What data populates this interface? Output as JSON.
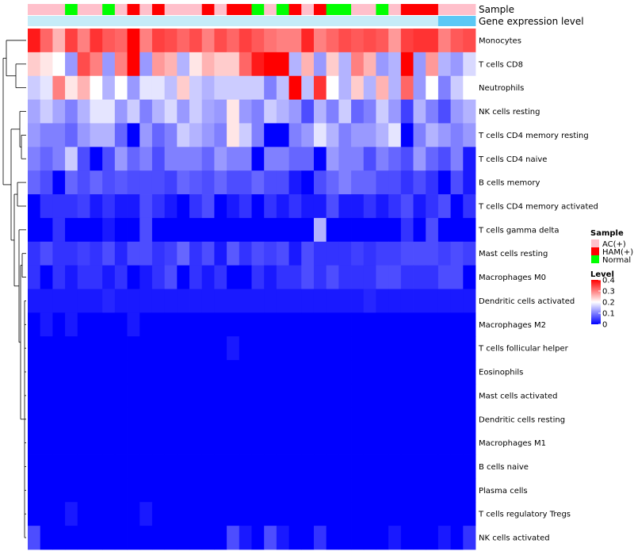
{
  "chart_data": {
    "type": "heatmap",
    "annotation_labels": {
      "sample": "Sample",
      "level": "Gene expression level"
    },
    "sample_colors": {
      "AC(+)": "#FFC0CB",
      "HAM(+)": "#FF0000",
      "Normal": "#00FF00"
    },
    "level_bar_colors": {
      "low": "#C6ECF8",
      "high": "#5BC8F5"
    },
    "samples": [
      "AC(+)",
      "AC(+)",
      "AC(+)",
      "Normal",
      "AC(+)",
      "AC(+)",
      "Normal",
      "AC(+)",
      "HAM(+)",
      "AC(+)",
      "HAM(+)",
      "AC(+)",
      "AC(+)",
      "AC(+)",
      "HAM(+)",
      "AC(+)",
      "HAM(+)",
      "HAM(+)",
      "Normal",
      "AC(+)",
      "Normal",
      "HAM(+)",
      "AC(+)",
      "HAM(+)",
      "Normal",
      "Normal",
      "AC(+)",
      "AC(+)",
      "Normal",
      "AC(+)",
      "HAM(+)",
      "HAM(+)",
      "HAM(+)",
      "AC(+)",
      "AC(+)",
      "AC(+)"
    ],
    "level_highlight_from": 33,
    "rows": [
      {
        "name": "Monocytes",
        "values": [
          0.38,
          0.32,
          0.26,
          0.35,
          0.3,
          0.36,
          0.33,
          0.32,
          0.4,
          0.3,
          0.35,
          0.34,
          0.32,
          0.34,
          0.3,
          0.34,
          0.32,
          0.35,
          0.33,
          0.31,
          0.3,
          0.3,
          0.37,
          0.3,
          0.32,
          0.34,
          0.33,
          0.34,
          0.33,
          0.28,
          0.35,
          0.36,
          0.36,
          0.3,
          0.33,
          0.34
        ]
      },
      {
        "name": "T cells CD8",
        "values": [
          0.24,
          0.22,
          0.2,
          0.12,
          0.34,
          0.3,
          0.12,
          0.3,
          0.4,
          0.12,
          0.28,
          0.26,
          0.14,
          0.22,
          0.26,
          0.24,
          0.24,
          0.32,
          0.38,
          0.4,
          0.4,
          0.14,
          0.26,
          0.12,
          0.24,
          0.14,
          0.3,
          0.26,
          0.12,
          0.14,
          0.4,
          0.12,
          0.28,
          0.14,
          0.12,
          0.17
        ]
      },
      {
        "name": "Neutrophils",
        "values": [
          0.16,
          0.18,
          0.3,
          0.22,
          0.26,
          0.2,
          0.14,
          0.2,
          0.12,
          0.18,
          0.18,
          0.15,
          0.24,
          0.16,
          0.14,
          0.16,
          0.16,
          0.16,
          0.16,
          0.1,
          0.15,
          0.4,
          0.15,
          0.36,
          0.2,
          0.14,
          0.24,
          0.14,
          0.26,
          0.14,
          0.32,
          0.12,
          0.2,
          0.1,
          0.16,
          0.2
        ]
      },
      {
        "name": "NK cells resting",
        "values": [
          0.13,
          0.16,
          0.13,
          0.1,
          0.14,
          0.18,
          0.18,
          0.12,
          0.16,
          0.1,
          0.14,
          0.17,
          0.12,
          0.16,
          0.13,
          0.12,
          0.22,
          0.12,
          0.1,
          0.16,
          0.14,
          0.12,
          0.06,
          0.14,
          0.1,
          0.16,
          0.08,
          0.1,
          0.16,
          0.12,
          0.05,
          0.14,
          0.1,
          0.06,
          0.12,
          0.14
        ]
      },
      {
        "name": "T cells CD4 memory resting",
        "values": [
          0.12,
          0.1,
          0.1,
          0.08,
          0.12,
          0.14,
          0.14,
          0.08,
          0.0,
          0.12,
          0.08,
          0.1,
          0.16,
          0.14,
          0.12,
          0.1,
          0.22,
          0.16,
          0.1,
          0.0,
          0.0,
          0.1,
          0.12,
          0.18,
          0.14,
          0.1,
          0.12,
          0.12,
          0.14,
          0.18,
          0.0,
          0.1,
          0.14,
          0.12,
          0.1,
          0.12
        ]
      },
      {
        "name": "T cells CD4 naive",
        "values": [
          0.1,
          0.08,
          0.1,
          0.16,
          0.06,
          0.0,
          0.06,
          0.12,
          0.08,
          0.1,
          0.06,
          0.1,
          0.1,
          0.1,
          0.08,
          0.12,
          0.1,
          0.1,
          0.0,
          0.1,
          0.1,
          0.08,
          0.08,
          0.0,
          0.12,
          0.1,
          0.1,
          0.06,
          0.1,
          0.08,
          0.06,
          0.12,
          0.08,
          0.06,
          0.1,
          0.02
        ]
      },
      {
        "name": "B cells memory",
        "values": [
          0.08,
          0.06,
          0.0,
          0.08,
          0.06,
          0.08,
          0.06,
          0.07,
          0.06,
          0.06,
          0.06,
          0.05,
          0.08,
          0.07,
          0.06,
          0.08,
          0.06,
          0.06,
          0.08,
          0.06,
          0.06,
          0.02,
          0.0,
          0.06,
          0.08,
          0.1,
          0.08,
          0.08,
          0.06,
          0.06,
          0.04,
          0.06,
          0.04,
          0.0,
          0.06,
          0.02
        ]
      },
      {
        "name": "T cells CD4 memory activated",
        "values": [
          0.0,
          0.04,
          0.04,
          0.04,
          0.05,
          0.02,
          0.04,
          0.02,
          0.02,
          0.06,
          0.04,
          0.02,
          0.0,
          0.04,
          0.06,
          0.0,
          0.02,
          0.04,
          0.0,
          0.04,
          0.02,
          0.04,
          0.02,
          0.02,
          0.06,
          0.02,
          0.02,
          0.04,
          0.02,
          0.04,
          0.06,
          0.02,
          0.04,
          0.06,
          0.0,
          0.04
        ]
      },
      {
        "name": "T cells gamma delta",
        "values": [
          0.0,
          0.0,
          0.04,
          0.0,
          0.0,
          0.0,
          0.02,
          0.0,
          0.0,
          0.06,
          0.0,
          0.0,
          0.0,
          0.0,
          0.0,
          0.0,
          0.0,
          0.0,
          0.0,
          0.0,
          0.0,
          0.0,
          0.0,
          0.14,
          0.0,
          0.0,
          0.0,
          0.0,
          0.0,
          0.0,
          0.04,
          0.0,
          0.06,
          0.0,
          0.0,
          0.0
        ]
      },
      {
        "name": "Mast cells resting",
        "values": [
          0.04,
          0.06,
          0.04,
          0.04,
          0.05,
          0.04,
          0.06,
          0.03,
          0.06,
          0.06,
          0.04,
          0.05,
          0.08,
          0.04,
          0.06,
          0.02,
          0.07,
          0.04,
          0.06,
          0.05,
          0.06,
          0.02,
          0.06,
          0.04,
          0.04,
          0.04,
          0.05,
          0.04,
          0.05,
          0.05,
          0.06,
          0.06,
          0.06,
          0.05,
          0.06,
          0.05
        ]
      },
      {
        "name": "Macrophages M0",
        "values": [
          0.04,
          0.0,
          0.04,
          0.02,
          0.04,
          0.04,
          0.02,
          0.04,
          0.0,
          0.02,
          0.04,
          0.06,
          0.0,
          0.04,
          0.02,
          0.04,
          0.0,
          0.0,
          0.04,
          0.02,
          0.04,
          0.04,
          0.06,
          0.04,
          0.06,
          0.04,
          0.04,
          0.04,
          0.06,
          0.06,
          0.04,
          0.04,
          0.04,
          0.06,
          0.06,
          0.0
        ]
      },
      {
        "name": "Dendritic cells activated",
        "values": [
          0.02,
          0.02,
          0.02,
          0.02,
          0.02,
          0.02,
          0.03,
          0.02,
          0.02,
          0.02,
          0.02,
          0.02,
          0.02,
          0.02,
          0.02,
          0.02,
          0.02,
          0.02,
          0.02,
          0.02,
          0.02,
          0.02,
          0.02,
          0.02,
          0.02,
          0.02,
          0.02,
          0.03,
          0.02,
          0.02,
          0.02,
          0.02,
          0.02,
          0.02,
          0.02,
          0.02
        ]
      },
      {
        "name": "Macrophages M2",
        "values": [
          0.0,
          0.02,
          0.0,
          0.02,
          0.0,
          0.0,
          0.0,
          0.0,
          0.02,
          0.0,
          0.0,
          0.0,
          0.0,
          0.0,
          0.0,
          0.0,
          0.0,
          0.0,
          0.0,
          0.0,
          0.0,
          0.0,
          0.0,
          0.0,
          0.0,
          0.0,
          0.0,
          0.0,
          0.0,
          0.0,
          0.0,
          0.0,
          0.0,
          0.0,
          0.0,
          0.0
        ]
      },
      {
        "name": "T cells follicular helper",
        "values": [
          0.0,
          0.0,
          0.0,
          0.0,
          0.0,
          0.0,
          0.0,
          0.0,
          0.0,
          0.0,
          0.0,
          0.0,
          0.0,
          0.0,
          0.0,
          0.0,
          0.02,
          0.0,
          0.0,
          0.0,
          0.0,
          0.0,
          0.0,
          0.0,
          0.0,
          0.0,
          0.0,
          0.0,
          0.0,
          0.0,
          0.0,
          0.0,
          0.0,
          0.0,
          0.0,
          0.0
        ]
      },
      {
        "name": "Eosinophils",
        "values": [
          0.0,
          0.0,
          0.0,
          0.0,
          0.0,
          0.0,
          0.0,
          0.0,
          0.0,
          0.0,
          0.0,
          0.0,
          0.0,
          0.0,
          0.0,
          0.0,
          0.0,
          0.0,
          0.0,
          0.0,
          0.0,
          0.0,
          0.0,
          0.0,
          0.0,
          0.0,
          0.0,
          0.0,
          0.0,
          0.0,
          0.0,
          0.0,
          0.0,
          0.0,
          0.0,
          0.0
        ]
      },
      {
        "name": "Mast cells activated",
        "values": [
          0.0,
          0.0,
          0.0,
          0.0,
          0.0,
          0.0,
          0.0,
          0.0,
          0.0,
          0.0,
          0.0,
          0.0,
          0.0,
          0.0,
          0.0,
          0.0,
          0.0,
          0.0,
          0.0,
          0.0,
          0.0,
          0.0,
          0.0,
          0.0,
          0.0,
          0.0,
          0.0,
          0.0,
          0.0,
          0.0,
          0.0,
          0.0,
          0.0,
          0.0,
          0.0,
          0.0
        ]
      },
      {
        "name": "Dendritic cells resting",
        "values": [
          0.0,
          0.0,
          0.0,
          0.0,
          0.0,
          0.0,
          0.0,
          0.0,
          0.0,
          0.0,
          0.0,
          0.0,
          0.0,
          0.0,
          0.0,
          0.0,
          0.0,
          0.0,
          0.0,
          0.0,
          0.0,
          0.0,
          0.0,
          0.0,
          0.0,
          0.0,
          0.0,
          0.0,
          0.0,
          0.0,
          0.0,
          0.0,
          0.0,
          0.0,
          0.0,
          0.0
        ]
      },
      {
        "name": "Macrophages M1",
        "values": [
          0.0,
          0.0,
          0.0,
          0.0,
          0.0,
          0.0,
          0.0,
          0.0,
          0.0,
          0.0,
          0.0,
          0.0,
          0.0,
          0.0,
          0.0,
          0.0,
          0.0,
          0.0,
          0.0,
          0.0,
          0.0,
          0.0,
          0.0,
          0.0,
          0.0,
          0.0,
          0.0,
          0.0,
          0.0,
          0.0,
          0.0,
          0.0,
          0.0,
          0.0,
          0.0,
          0.0
        ]
      },
      {
        "name": "B cells naive",
        "values": [
          0.0,
          0.0,
          0.0,
          0.0,
          0.0,
          0.0,
          0.0,
          0.0,
          0.0,
          0.0,
          0.0,
          0.0,
          0.0,
          0.0,
          0.0,
          0.0,
          0.0,
          0.0,
          0.0,
          0.0,
          0.0,
          0.0,
          0.0,
          0.0,
          0.0,
          0.0,
          0.0,
          0.0,
          0.0,
          0.0,
          0.0,
          0.0,
          0.0,
          0.0,
          0.0,
          0.0
        ]
      },
      {
        "name": "Plasma cells",
        "values": [
          0.0,
          0.0,
          0.0,
          0.0,
          0.0,
          0.0,
          0.0,
          0.0,
          0.0,
          0.0,
          0.0,
          0.0,
          0.0,
          0.0,
          0.0,
          0.0,
          0.0,
          0.0,
          0.0,
          0.0,
          0.0,
          0.0,
          0.0,
          0.0,
          0.0,
          0.0,
          0.0,
          0.0,
          0.0,
          0.0,
          0.0,
          0.0,
          0.0,
          0.0,
          0.0,
          0.0
        ]
      },
      {
        "name": "T cells regulatory  Tregs",
        "values": [
          0.0,
          0.0,
          0.0,
          0.02,
          0.0,
          0.0,
          0.0,
          0.0,
          0.0,
          0.02,
          0.0,
          0.0,
          0.0,
          0.0,
          0.0,
          0.0,
          0.0,
          0.0,
          0.0,
          0.0,
          0.0,
          0.0,
          0.0,
          0.0,
          0.0,
          0.0,
          0.0,
          0.0,
          0.0,
          0.0,
          0.0,
          0.0,
          0.0,
          0.0,
          0.0,
          0.0
        ]
      },
      {
        "name": "NK cells activated",
        "values": [
          0.06,
          0.0,
          0.0,
          0.0,
          0.0,
          0.0,
          0.0,
          0.0,
          0.0,
          0.0,
          0.0,
          0.0,
          0.0,
          0.0,
          0.0,
          0.0,
          0.06,
          0.02,
          0.0,
          0.06,
          0.02,
          0.0,
          0.0,
          0.04,
          0.0,
          0.0,
          0.0,
          0.0,
          0.0,
          0.02,
          0.0,
          0.0,
          0.0,
          0.02,
          0.0,
          0.04
        ]
      }
    ],
    "color_scale": {
      "min": 0,
      "mid": 0.2,
      "max": 0.4,
      "low": "#0000FF",
      "mid_color": "#FFFFFF",
      "high": "#FF0000"
    },
    "legend": {
      "sample_title": "Sample",
      "sample_entries": [
        "AC(+)",
        "HAM(+)",
        "Normal"
      ],
      "level_title": "Level",
      "level_ticks": [
        0.4,
        0.3,
        0.2,
        0.1,
        0
      ]
    },
    "dendrogram": "row clustering tree on left"
  }
}
